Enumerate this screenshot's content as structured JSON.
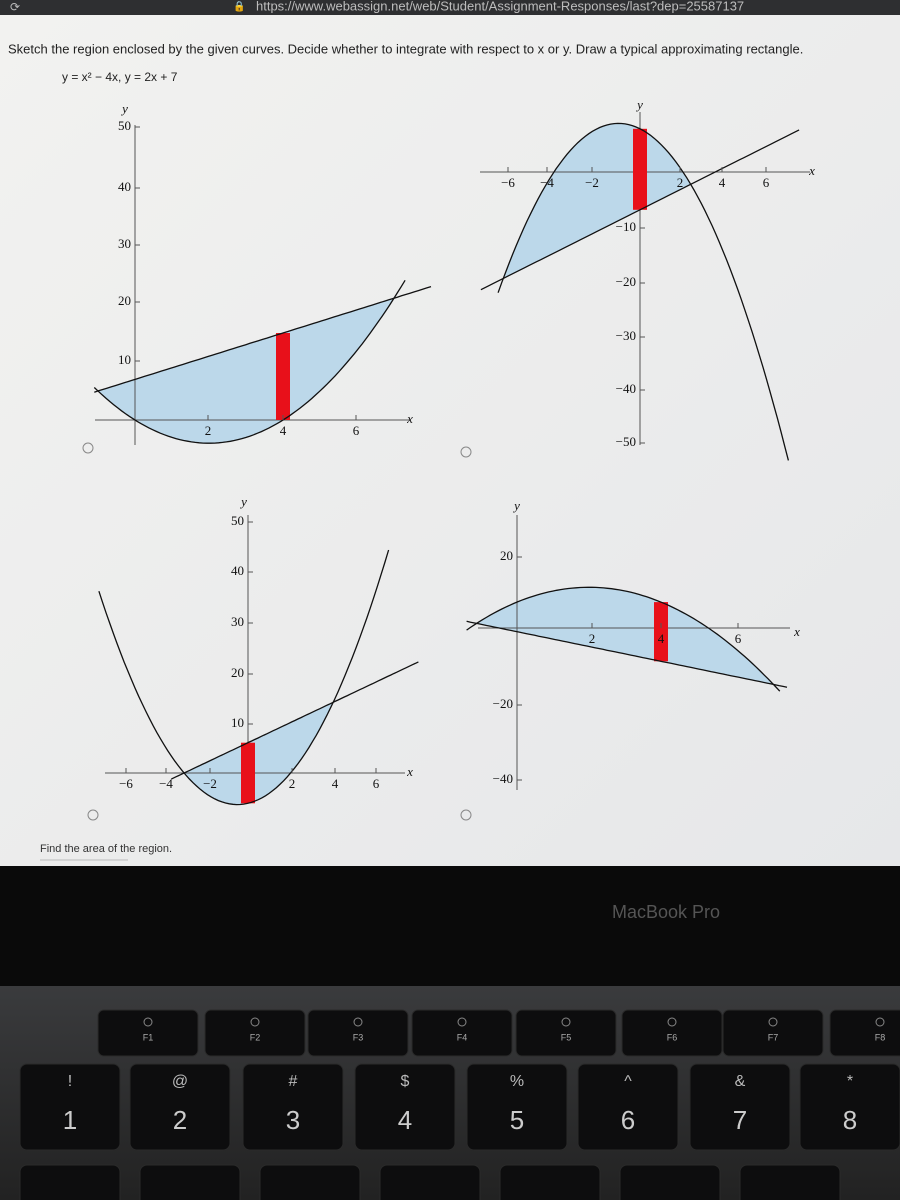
{
  "browser": {
    "url": "https://www.webassign.net/web/Student/Assignment-Responses/last?dep=25587137"
  },
  "question": {
    "prompt": "Sketch the region enclosed by the given curves. Decide whether to integrate with respect to x or y. Draw a typical approximating rectangle.",
    "equation": "y = x² − 4x,  y = 2x + 7"
  },
  "graphs": [
    {
      "y_label": "y",
      "x_label": "x",
      "y_ticks": [
        "50",
        "40",
        "30",
        "20",
        "10"
      ],
      "x_ticks": [
        "2",
        "4",
        "6"
      ]
    },
    {
      "y_label": "y",
      "x_label": "x",
      "y_ticks": [
        "−10",
        "−20",
        "−30",
        "−40",
        "−50"
      ],
      "x_ticks": [
        "−6",
        "−4",
        "−2",
        "2",
        "4",
        "6"
      ]
    },
    {
      "y_label": "y",
      "x_label": "x",
      "y_ticks": [
        "50",
        "40",
        "30",
        "20",
        "10"
      ],
      "x_ticks": [
        "−6",
        "−4",
        "−2",
        "2",
        "4",
        "6"
      ]
    },
    {
      "y_label": "y",
      "x_label": "x",
      "y_ticks": [
        "20",
        "−20",
        "−40"
      ],
      "x_ticks": [
        "2",
        "4",
        "6"
      ]
    }
  ],
  "footer": {
    "prompt": "Find the area of the region."
  },
  "laptop": {
    "brand": "MacBook Pro",
    "function_keys": [
      "F1",
      "F2",
      "F3",
      "F4",
      "F5",
      "F6",
      "F7",
      "F8"
    ],
    "number_keys": [
      {
        "symbol": "!",
        "digit": "1"
      },
      {
        "symbol": "@",
        "digit": "2"
      },
      {
        "symbol": "#",
        "digit": "3"
      },
      {
        "symbol": "$",
        "digit": "4"
      },
      {
        "symbol": "%",
        "digit": "5"
      },
      {
        "symbol": "^",
        "digit": "6"
      },
      {
        "symbol": "&",
        "digit": "7"
      },
      {
        "symbol": "*",
        "digit": "8"
      }
    ]
  }
}
